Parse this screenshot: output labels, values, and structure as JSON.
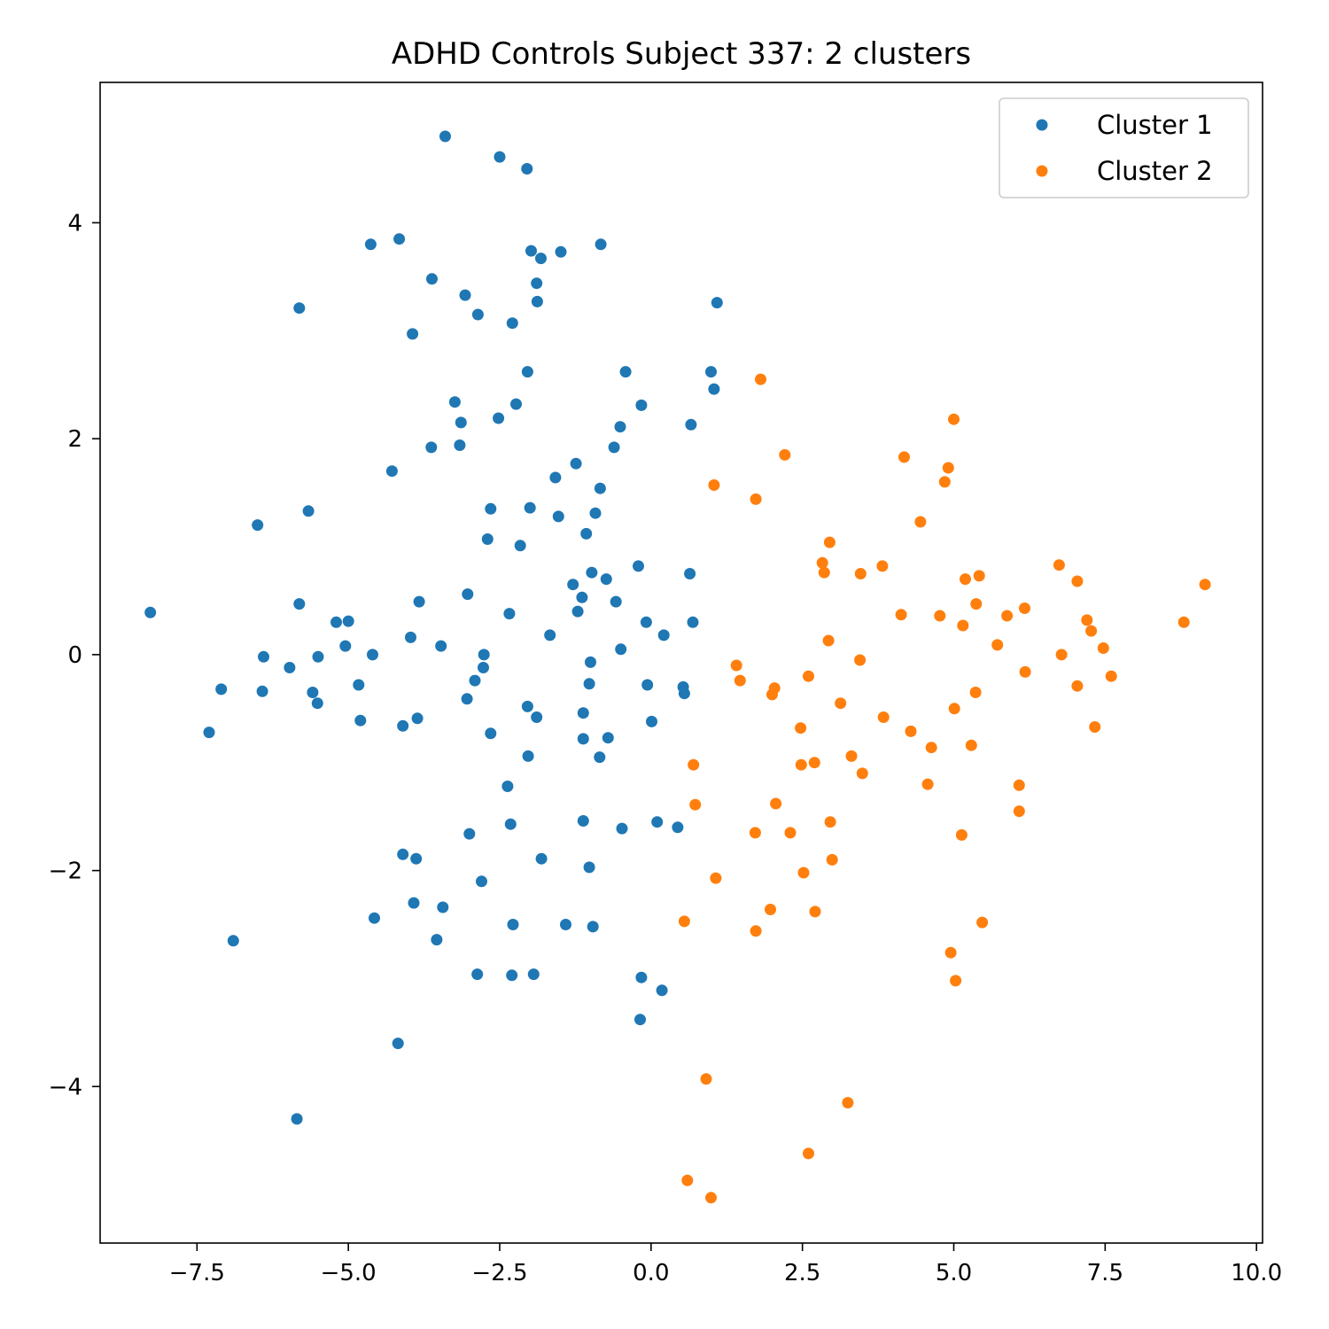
{
  "chart_data": {
    "type": "scatter",
    "title": "ADHD Controls Subject 337: 2 clusters",
    "xlabel": "",
    "ylabel": "",
    "xlim": [
      -9.1,
      10.1
    ],
    "ylim": [
      -5.45,
      5.3
    ],
    "xticks": [
      -7.5,
      -5.0,
      -2.5,
      0.0,
      2.5,
      5.0,
      7.5,
      10.0
    ],
    "xtick_labels": [
      "−7.5",
      "−5.0",
      "−2.5",
      "0.0",
      "2.5",
      "5.0",
      "7.5",
      "10.0"
    ],
    "yticks": [
      -4,
      -2,
      0,
      2,
      4
    ],
    "ytick_labels": [
      "−4",
      "−2",
      "0",
      "2",
      "4"
    ],
    "grid": false,
    "legend_position": "top-right",
    "series": [
      {
        "name": "Cluster 1",
        "color": "#1f77b4",
        "points": [
          [
            -3.4,
            4.8
          ],
          [
            -2.5,
            4.61
          ],
          [
            -2.05,
            4.5
          ],
          [
            -4.16,
            3.85
          ],
          [
            -4.63,
            3.8
          ],
          [
            -0.83,
            3.8
          ],
          [
            -1.98,
            3.74
          ],
          [
            -1.49,
            3.73
          ],
          [
            -1.82,
            3.67
          ],
          [
            -3.62,
            3.48
          ],
          [
            -1.89,
            3.44
          ],
          [
            -3.07,
            3.33
          ],
          [
            -1.88,
            3.27
          ],
          [
            1.09,
            3.26
          ],
          [
            -5.81,
            3.21
          ],
          [
            -2.86,
            3.15
          ],
          [
            -2.29,
            3.07
          ],
          [
            -3.94,
            2.97
          ],
          [
            -2.04,
            2.62
          ],
          [
            -0.42,
            2.62
          ],
          [
            0.99,
            2.62
          ],
          [
            1.04,
            2.46
          ],
          [
            -3.24,
            2.34
          ],
          [
            -2.23,
            2.32
          ],
          [
            -0.16,
            2.31
          ],
          [
            -2.52,
            2.19
          ],
          [
            -3.14,
            2.15
          ],
          [
            0.66,
            2.13
          ],
          [
            -0.51,
            2.11
          ],
          [
            -3.63,
            1.92
          ],
          [
            -3.16,
            1.94
          ],
          [
            -0.61,
            1.92
          ],
          [
            -1.24,
            1.77
          ],
          [
            -4.28,
            1.7
          ],
          [
            -1.58,
            1.64
          ],
          [
            -0.84,
            1.54
          ],
          [
            -5.66,
            1.33
          ],
          [
            -2.65,
            1.35
          ],
          [
            -2.0,
            1.36
          ],
          [
            -1.53,
            1.28
          ],
          [
            -0.92,
            1.31
          ],
          [
            -6.5,
            1.2
          ],
          [
            -1.07,
            1.12
          ],
          [
            -2.7,
            1.07
          ],
          [
            -2.16,
            1.01
          ],
          [
            -0.21,
            0.82
          ],
          [
            -0.98,
            0.76
          ],
          [
            0.64,
            0.75
          ],
          [
            -0.74,
            0.7
          ],
          [
            -1.29,
            0.65
          ],
          [
            -3.03,
            0.56
          ],
          [
            -1.14,
            0.53
          ],
          [
            -3.83,
            0.49
          ],
          [
            -0.58,
            0.49
          ],
          [
            -5.81,
            0.47
          ],
          [
            -8.27,
            0.39
          ],
          [
            -1.21,
            0.4
          ],
          [
            -2.34,
            0.38
          ],
          [
            -5.0,
            0.31
          ],
          [
            -5.2,
            0.3
          ],
          [
            -0.08,
            0.3
          ],
          [
            0.69,
            0.3
          ],
          [
            0.21,
            0.18
          ],
          [
            -1.67,
            0.18
          ],
          [
            -3.97,
            0.16
          ],
          [
            -5.05,
            0.08
          ],
          [
            -3.47,
            0.08
          ],
          [
            -6.4,
            -0.02
          ],
          [
            -4.6,
            0.0
          ],
          [
            -5.5,
            -0.02
          ],
          [
            -2.76,
            0.0
          ],
          [
            -0.5,
            0.05
          ],
          [
            -1.0,
            -0.07
          ],
          [
            -5.97,
            -0.12
          ],
          [
            -2.77,
            -0.12
          ],
          [
            -2.91,
            -0.24
          ],
          [
            -1.02,
            -0.27
          ],
          [
            -4.83,
            -0.28
          ],
          [
            -0.06,
            -0.28
          ],
          [
            0.53,
            -0.3
          ],
          [
            -7.1,
            -0.32
          ],
          [
            -6.42,
            -0.34
          ],
          [
            -5.59,
            -0.35
          ],
          [
            0.55,
            -0.36
          ],
          [
            -3.04,
            -0.41
          ],
          [
            -5.51,
            -0.45
          ],
          [
            -2.04,
            -0.48
          ],
          [
            -1.12,
            -0.54
          ],
          [
            -1.89,
            -0.58
          ],
          [
            -3.86,
            -0.59
          ],
          [
            -4.8,
            -0.61
          ],
          [
            0.01,
            -0.62
          ],
          [
            -4.1,
            -0.66
          ],
          [
            -7.3,
            -0.72
          ],
          [
            -2.65,
            -0.73
          ],
          [
            -0.71,
            -0.77
          ],
          [
            -1.12,
            -0.78
          ],
          [
            -2.03,
            -0.94
          ],
          [
            -0.85,
            -0.95
          ],
          [
            -2.37,
            -1.22
          ],
          [
            -1.12,
            -1.54
          ],
          [
            0.1,
            -1.55
          ],
          [
            -2.32,
            -1.57
          ],
          [
            0.44,
            -1.6
          ],
          [
            -0.48,
            -1.61
          ],
          [
            -3.0,
            -1.66
          ],
          [
            -4.1,
            -1.85
          ],
          [
            -3.88,
            -1.89
          ],
          [
            -1.81,
            -1.89
          ],
          [
            -1.02,
            -1.97
          ],
          [
            -2.8,
            -2.1
          ],
          [
            -3.92,
            -2.3
          ],
          [
            -3.44,
            -2.34
          ],
          [
            -4.57,
            -2.44
          ],
          [
            -2.28,
            -2.5
          ],
          [
            -1.41,
            -2.5
          ],
          [
            -0.96,
            -2.52
          ],
          [
            -3.54,
            -2.64
          ],
          [
            -6.9,
            -2.65
          ],
          [
            -2.87,
            -2.96
          ],
          [
            -2.3,
            -2.97
          ],
          [
            -1.94,
            -2.96
          ],
          [
            -0.16,
            -2.99
          ],
          [
            0.18,
            -3.11
          ],
          [
            -0.18,
            -3.38
          ],
          [
            -4.18,
            -3.6
          ],
          [
            -5.85,
            -4.3
          ]
        ]
      },
      {
        "name": "Cluster 2",
        "color": "#ff7f0e",
        "points": [
          [
            1.81,
            2.55
          ],
          [
            5.0,
            2.18
          ],
          [
            2.21,
            1.85
          ],
          [
            4.18,
            1.83
          ],
          [
            4.91,
            1.73
          ],
          [
            4.85,
            1.6
          ],
          [
            1.04,
            1.57
          ],
          [
            1.73,
            1.44
          ],
          [
            4.45,
            1.23
          ],
          [
            2.95,
            1.04
          ],
          [
            2.83,
            0.85
          ],
          [
            6.74,
            0.83
          ],
          [
            3.82,
            0.82
          ],
          [
            2.86,
            0.76
          ],
          [
            3.46,
            0.75
          ],
          [
            5.42,
            0.73
          ],
          [
            5.19,
            0.7
          ],
          [
            7.04,
            0.68
          ],
          [
            9.15,
            0.65
          ],
          [
            5.37,
            0.47
          ],
          [
            6.17,
            0.43
          ],
          [
            4.13,
            0.37
          ],
          [
            4.77,
            0.36
          ],
          [
            5.88,
            0.36
          ],
          [
            7.2,
            0.32
          ],
          [
            8.8,
            0.3
          ],
          [
            5.15,
            0.27
          ],
          [
            7.27,
            0.22
          ],
          [
            2.93,
            0.13
          ],
          [
            5.72,
            0.09
          ],
          [
            7.47,
            0.06
          ],
          [
            6.78,
            0.0
          ],
          [
            3.45,
            -0.05
          ],
          [
            1.41,
            -0.1
          ],
          [
            6.18,
            -0.16
          ],
          [
            2.6,
            -0.2
          ],
          [
            7.6,
            -0.2
          ],
          [
            1.47,
            -0.24
          ],
          [
            7.04,
            -0.29
          ],
          [
            2.04,
            -0.31
          ],
          [
            2.0,
            -0.37
          ],
          [
            5.36,
            -0.35
          ],
          [
            3.13,
            -0.45
          ],
          [
            5.01,
            -0.5
          ],
          [
            3.84,
            -0.58
          ],
          [
            2.47,
            -0.68
          ],
          [
            7.33,
            -0.67
          ],
          [
            4.29,
            -0.71
          ],
          [
            5.29,
            -0.84
          ],
          [
            4.63,
            -0.86
          ],
          [
            3.31,
            -0.94
          ],
          [
            2.7,
            -1.0
          ],
          [
            0.7,
            -1.02
          ],
          [
            2.48,
            -1.02
          ],
          [
            3.49,
            -1.1
          ],
          [
            4.57,
            -1.2
          ],
          [
            6.08,
            -1.21
          ],
          [
            0.73,
            -1.39
          ],
          [
            2.06,
            -1.38
          ],
          [
            6.08,
            -1.45
          ],
          [
            2.96,
            -1.55
          ],
          [
            1.72,
            -1.65
          ],
          [
            2.3,
            -1.65
          ],
          [
            5.13,
            -1.67
          ],
          [
            2.99,
            -1.9
          ],
          [
            1.07,
            -2.07
          ],
          [
            2.52,
            -2.02
          ],
          [
            1.97,
            -2.36
          ],
          [
            2.71,
            -2.38
          ],
          [
            0.55,
            -2.47
          ],
          [
            5.47,
            -2.48
          ],
          [
            1.73,
            -2.56
          ],
          [
            4.95,
            -2.76
          ],
          [
            5.03,
            -3.02
          ],
          [
            0.91,
            -3.93
          ],
          [
            3.25,
            -4.15
          ],
          [
            2.6,
            -4.62
          ],
          [
            0.6,
            -4.87
          ],
          [
            0.99,
            -5.03
          ]
        ]
      }
    ]
  }
}
